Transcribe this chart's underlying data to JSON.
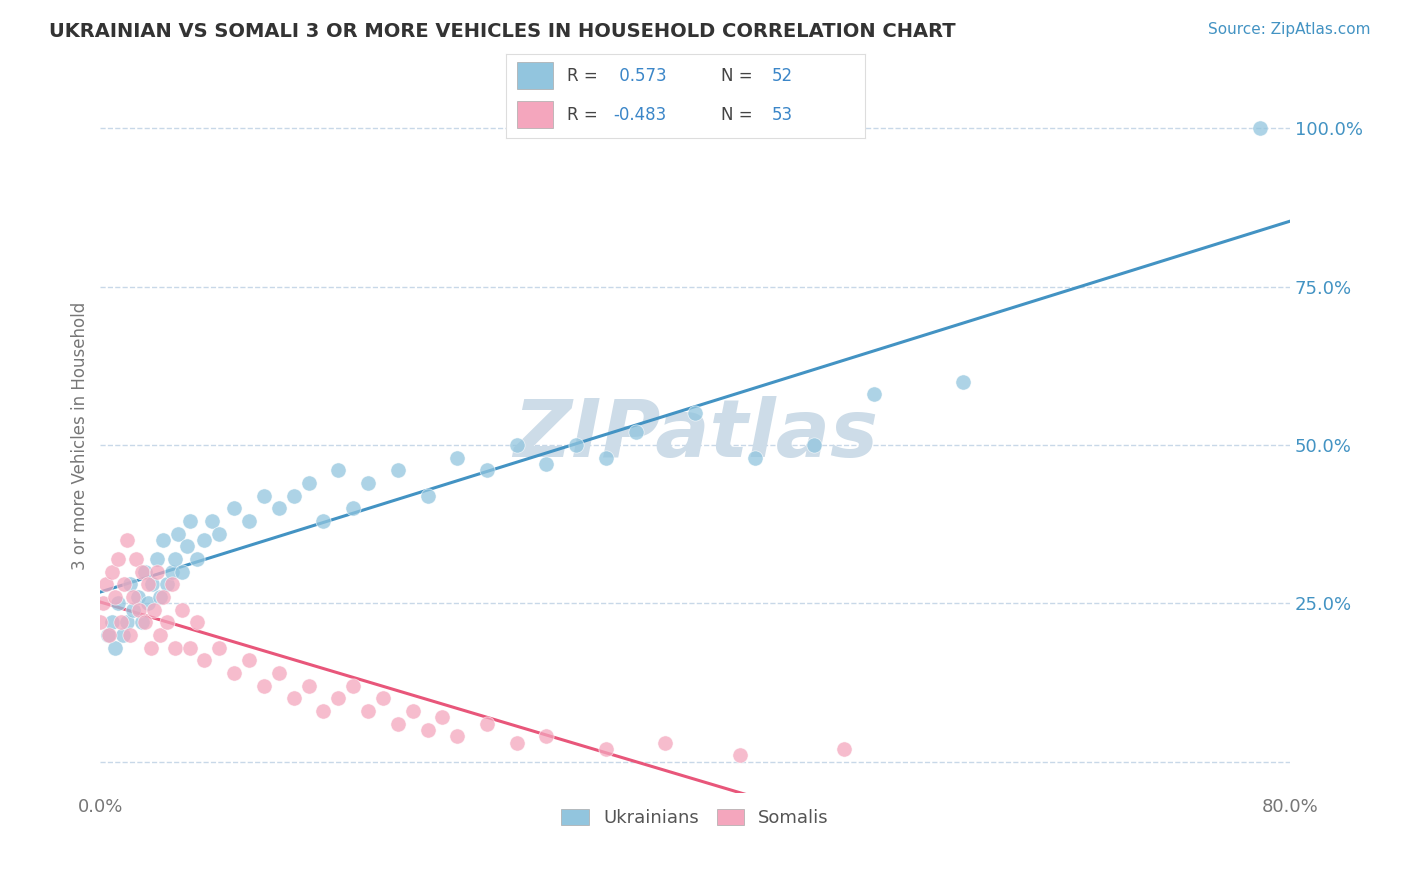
{
  "title": "UKRAINIAN VS SOMALI 3 OR MORE VEHICLES IN HOUSEHOLD CORRELATION CHART",
  "source_text": "Source: ZipAtlas.com",
  "ylabel": "3 or more Vehicles in Household",
  "xlim": [
    0.0,
    0.8
  ],
  "ylim": [
    -0.05,
    1.08
  ],
  "x_ticks": [
    0.0,
    0.8
  ],
  "y_ticks": [
    0.0,
    0.25,
    0.5,
    0.75,
    1.0
  ],
  "blue_color": "#92c5de",
  "pink_color": "#f4a6bd",
  "blue_line_color": "#4393c3",
  "pink_line_color": "#e8567a",
  "grid_color": "#c8d8e8",
  "watermark_color": "#cddce8",
  "legend_R_color": "#3b86c8",
  "title_color": "#333333",
  "background_color": "#ffffff",
  "R_ukrainian": 0.573,
  "N_ukrainian": 52,
  "R_somali": -0.483,
  "N_somali": 53,
  "ukrainian_x": [
    0.005,
    0.008,
    0.01,
    0.012,
    0.015,
    0.018,
    0.02,
    0.022,
    0.025,
    0.028,
    0.03,
    0.032,
    0.035,
    0.038,
    0.04,
    0.042,
    0.045,
    0.048,
    0.05,
    0.052,
    0.055,
    0.058,
    0.06,
    0.065,
    0.07,
    0.075,
    0.08,
    0.09,
    0.1,
    0.11,
    0.12,
    0.13,
    0.14,
    0.15,
    0.16,
    0.17,
    0.18,
    0.2,
    0.22,
    0.24,
    0.26,
    0.28,
    0.3,
    0.32,
    0.34,
    0.36,
    0.4,
    0.44,
    0.48,
    0.52,
    0.58,
    0.78
  ],
  "ukrainian_y": [
    0.2,
    0.22,
    0.18,
    0.25,
    0.2,
    0.22,
    0.28,
    0.24,
    0.26,
    0.22,
    0.3,
    0.25,
    0.28,
    0.32,
    0.26,
    0.35,
    0.28,
    0.3,
    0.32,
    0.36,
    0.3,
    0.34,
    0.38,
    0.32,
    0.35,
    0.38,
    0.36,
    0.4,
    0.38,
    0.42,
    0.4,
    0.42,
    0.44,
    0.38,
    0.46,
    0.4,
    0.44,
    0.46,
    0.42,
    0.48,
    0.46,
    0.5,
    0.47,
    0.5,
    0.48,
    0.52,
    0.55,
    0.48,
    0.5,
    0.58,
    0.6,
    1.0
  ],
  "somali_x": [
    0.0,
    0.002,
    0.004,
    0.006,
    0.008,
    0.01,
    0.012,
    0.014,
    0.016,
    0.018,
    0.02,
    0.022,
    0.024,
    0.026,
    0.028,
    0.03,
    0.032,
    0.034,
    0.036,
    0.038,
    0.04,
    0.042,
    0.045,
    0.048,
    0.05,
    0.055,
    0.06,
    0.065,
    0.07,
    0.08,
    0.09,
    0.1,
    0.11,
    0.12,
    0.13,
    0.14,
    0.15,
    0.16,
    0.17,
    0.18,
    0.19,
    0.2,
    0.21,
    0.22,
    0.23,
    0.24,
    0.26,
    0.28,
    0.3,
    0.34,
    0.38,
    0.43,
    0.5
  ],
  "somali_y": [
    0.22,
    0.25,
    0.28,
    0.2,
    0.3,
    0.26,
    0.32,
    0.22,
    0.28,
    0.35,
    0.2,
    0.26,
    0.32,
    0.24,
    0.3,
    0.22,
    0.28,
    0.18,
    0.24,
    0.3,
    0.2,
    0.26,
    0.22,
    0.28,
    0.18,
    0.24,
    0.18,
    0.22,
    0.16,
    0.18,
    0.14,
    0.16,
    0.12,
    0.14,
    0.1,
    0.12,
    0.08,
    0.1,
    0.12,
    0.08,
    0.1,
    0.06,
    0.08,
    0.05,
    0.07,
    0.04,
    0.06,
    0.03,
    0.04,
    0.02,
    0.03,
    0.01,
    0.02
  ],
  "legend_label_ukrainian": "Ukrainians",
  "legend_label_somali": "Somalis",
  "watermark": "ZIPatlas"
}
